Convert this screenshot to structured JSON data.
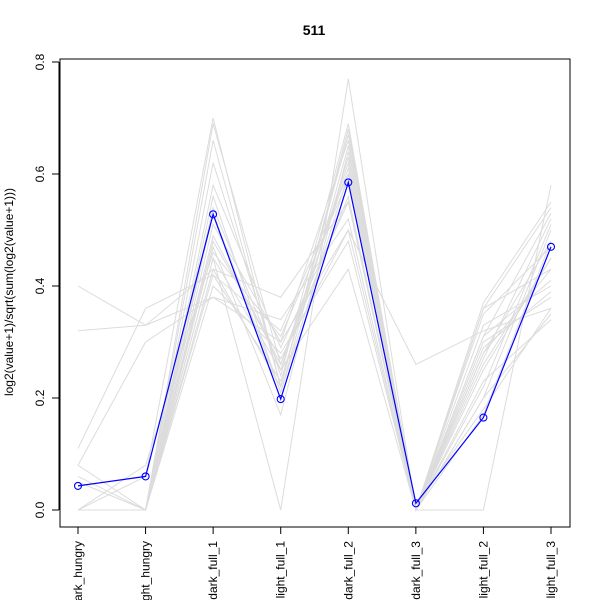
{
  "chart_data": {
    "type": "line",
    "title": "511",
    "xlabel": "",
    "ylabel": "log2(value+1)/sqrt(sum(log2(value+1)))",
    "categories": [
      "dark_hungry",
      "light_hungry",
      "dark_full_1",
      "light_full_1",
      "dark_full_2",
      "dark_full_3",
      "light_full_2",
      "light_full_3"
    ],
    "ylim": [
      0,
      0.8
    ],
    "yticks": [
      0.0,
      0.2,
      0.4,
      0.6,
      0.8
    ],
    "ytick_labels": [
      "0.0",
      "0.2",
      "0.4",
      "0.6",
      "0.8"
    ],
    "grid": false,
    "highlight_series": {
      "name": "511",
      "values": [
        0.043,
        0.06,
        0.528,
        0.198,
        0.585,
        0.012,
        0.165,
        0.47
      ]
    },
    "background_series": [
      {
        "values": [
          0.4,
          0.33,
          0.43,
          0.38,
          0.55,
          0.01,
          0.18,
          0.36
        ]
      },
      {
        "values": [
          0.32,
          0.33,
          0.38,
          0.3,
          0.5,
          0.26,
          0.32,
          0.36
        ]
      },
      {
        "values": [
          0.11,
          0.36,
          0.42,
          0.32,
          0.6,
          0.0,
          0.36,
          0.43
        ]
      },
      {
        "values": [
          0.08,
          0.3,
          0.38,
          0.34,
          0.52,
          0.0,
          0.31,
          0.41
        ]
      },
      {
        "values": [
          0.08,
          0.0,
          0.45,
          0.0,
          0.77,
          0.0,
          0.0,
          0.58
        ]
      },
      {
        "values": [
          0.0,
          0.0,
          0.66,
          0.22,
          0.68,
          0.0,
          0.27,
          0.52
        ]
      },
      {
        "values": [
          0.0,
          0.06,
          0.7,
          0.22,
          0.68,
          0.0,
          0.25,
          0.45
        ]
      },
      {
        "values": [
          0.0,
          0.0,
          0.62,
          0.24,
          0.69,
          0.0,
          0.2,
          0.5
        ]
      },
      {
        "values": [
          0.0,
          0.0,
          0.56,
          0.21,
          0.65,
          0.0,
          0.28,
          0.43
        ]
      },
      {
        "values": [
          0.05,
          0.0,
          0.53,
          0.21,
          0.6,
          0.0,
          0.17,
          0.48
        ]
      },
      {
        "values": [
          0.0,
          0.0,
          0.49,
          0.26,
          0.56,
          0.0,
          0.33,
          0.4
        ]
      },
      {
        "values": [
          0.0,
          0.0,
          0.48,
          0.27,
          0.5,
          0.0,
          0.35,
          0.47
        ]
      },
      {
        "values": [
          0.0,
          0.0,
          0.47,
          0.17,
          0.64,
          0.0,
          0.22,
          0.51
        ]
      },
      {
        "values": [
          0.0,
          0.0,
          0.45,
          0.25,
          0.62,
          0.0,
          0.3,
          0.38
        ]
      },
      {
        "values": [
          0.0,
          0.0,
          0.42,
          0.23,
          0.63,
          0.0,
          0.23,
          0.34
        ]
      },
      {
        "values": [
          0.0,
          0.0,
          0.4,
          0.28,
          0.48,
          0.0,
          0.31,
          0.53
        ]
      },
      {
        "values": [
          0.0,
          0.0,
          0.58,
          0.29,
          0.55,
          0.0,
          0.36,
          0.54
        ]
      },
      {
        "values": [
          0.0,
          0.0,
          0.54,
          0.25,
          0.43,
          0.0,
          0.37,
          0.55
        ]
      },
      {
        "values": [
          0.06,
          0.0,
          0.51,
          0.3,
          0.66,
          0.0,
          0.26,
          0.45
        ]
      },
      {
        "values": [
          0.0,
          0.08,
          0.46,
          0.31,
          0.59,
          0.0,
          0.29,
          0.39
        ]
      },
      {
        "values": [
          0.0,
          0.0,
          0.69,
          0.26,
          0.61,
          0.0,
          0.28,
          0.48
        ]
      },
      {
        "values": [
          0.0,
          0.0,
          0.43,
          0.22,
          0.67,
          0.0,
          0.2,
          0.35
        ]
      }
    ],
    "colors": {
      "highlight": "#0000ff",
      "background": "#dcdcdc",
      "axis": "#000000"
    }
  }
}
